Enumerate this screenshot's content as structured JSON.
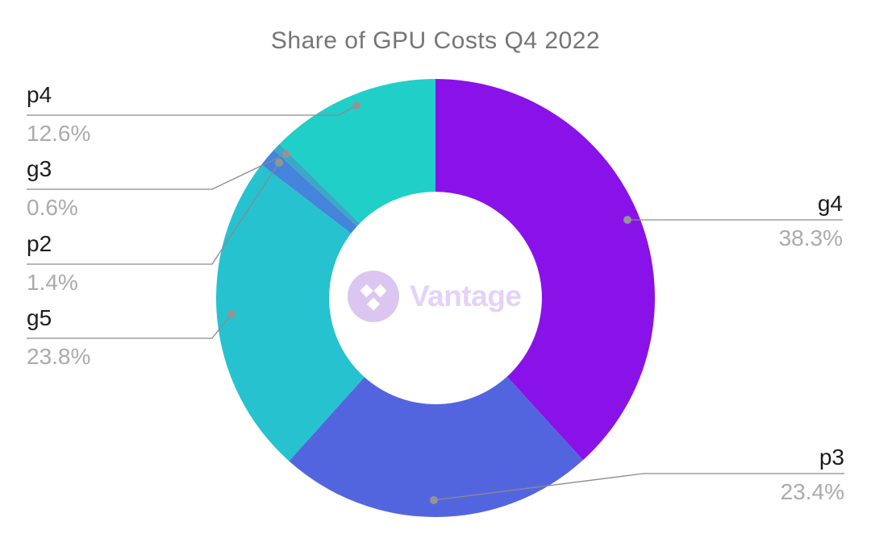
{
  "chart_data": {
    "type": "pie",
    "variant": "donut",
    "title": "Share of GPU Costs Q4 2022",
    "start_angle_deg": 0,
    "direction": "clockwise",
    "inner_radius_ratio": 0.485,
    "legend": "none",
    "slices": [
      {
        "label": "g4",
        "value": 38.3,
        "display": "38.3%",
        "color": "#8912E8"
      },
      {
        "label": "p3",
        "value": 23.4,
        "display": "23.4%",
        "color": "#5365DE"
      },
      {
        "label": "g5",
        "value": 23.8,
        "display": "23.8%",
        "color": "#27C2CF"
      },
      {
        "label": "p2",
        "value": 1.4,
        "display": "1.4%",
        "color": "#4484DB"
      },
      {
        "label": "g3",
        "value": 0.6,
        "display": "0.6%",
        "color": "#3AA9C6"
      },
      {
        "label": "p4",
        "value": 12.6,
        "display": "12.6%",
        "color": "#21CFC9"
      }
    ]
  },
  "watermark": {
    "text": "Vantage"
  },
  "colors": {
    "title_text": "#757575",
    "label_text": "#1C1C1C",
    "pct_text": "#ABABAB",
    "leader_line": "#8A8A8A",
    "leader_dot": "#949494",
    "logo_circle": "#DBC6F2",
    "logo_text": "#E3D3F7"
  }
}
